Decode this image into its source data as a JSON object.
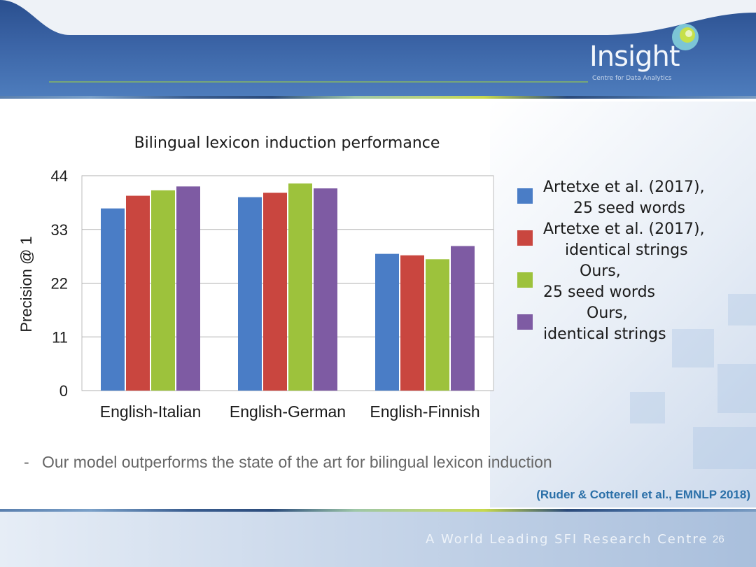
{
  "header": {
    "brand_name": "Insight",
    "brand_tagline": "Centre for Data Analytics"
  },
  "colors": {
    "series_blue": "#4a7dc6",
    "series_red": "#c9463f",
    "series_green": "#9dc23c",
    "series_purple": "#7e5ba3",
    "citation": "#2a6fa8"
  },
  "chart_data": {
    "type": "bar",
    "title": "Bilingual lexicon induction performance",
    "ylabel": "Precision @ 1",
    "xlabel": "",
    "ylim": [
      0,
      44
    ],
    "yticks": [
      "44",
      "33",
      "22",
      "11",
      "0"
    ],
    "grid": true,
    "legend_position": "right",
    "categories": [
      "English-Italian",
      "English-German",
      "English-Finnish"
    ],
    "series": [
      {
        "name": "Artetxe et al. (2017), 25 seed words",
        "legend_lines": [
          "Artetxe et al. (2017),",
          "25 seed words"
        ],
        "color": "#4a7dc6",
        "values": [
          37.3,
          39.6,
          28.0
        ]
      },
      {
        "name": "Artetxe et al. (2017), identical strings",
        "legend_lines": [
          "Artetxe et al. (2017),",
          "identical strings"
        ],
        "color": "#c9463f",
        "values": [
          39.9,
          40.5,
          27.7
        ]
      },
      {
        "name": "Ours, 25 seed words",
        "legend_lines": [
          "Ours,",
          "25 seed words"
        ],
        "color": "#9dc23c",
        "values": [
          41.0,
          42.4,
          26.9
        ]
      },
      {
        "name": "Ours, identical strings",
        "legend_lines": [
          "Ours,",
          "identical strings"
        ],
        "color": "#7e5ba3",
        "values": [
          41.8,
          41.4,
          29.6
        ]
      }
    ]
  },
  "body": {
    "bullet_dash": "-",
    "bullet_text": "Our model outperforms the state of the art for bilingual lexicon induction",
    "citation": "(Ruder & Cotterell et al., EMNLP 2018)"
  },
  "footer": {
    "text": "A World Leading SFI Research Centre",
    "page_number": "26"
  }
}
